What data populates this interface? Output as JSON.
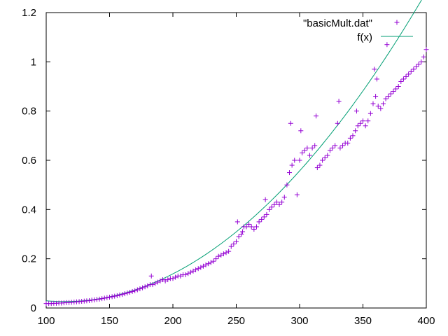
{
  "chart_data": {
    "type": "scatter",
    "xlim": [
      100,
      400
    ],
    "ylim": [
      0,
      1.2
    ],
    "xticks": [
      100,
      150,
      200,
      250,
      300,
      350,
      400
    ],
    "yticks": [
      0,
      0.2,
      0.4,
      0.6,
      0.8,
      1,
      1.2
    ],
    "xtick_labels": [
      "100",
      "150",
      "200",
      "250",
      "300",
      "350",
      "400"
    ],
    "ytick_labels": [
      "0",
      "0.2",
      "0.4",
      "0.6",
      "0.8",
      "1",
      "1.2"
    ],
    "grid": false,
    "legend_position": "top-right",
    "series": [
      {
        "name": "\"basicMult.dat\"",
        "kind": "points",
        "marker": "plus",
        "color": "#9400d3",
        "x": [
          100,
          102,
          104,
          106,
          108,
          110,
          112,
          114,
          116,
          118,
          120,
          122,
          124,
          126,
          128,
          130,
          132,
          134,
          136,
          138,
          140,
          142,
          144,
          146,
          148,
          150,
          152,
          154,
          156,
          158,
          160,
          162,
          164,
          166,
          168,
          170,
          172,
          174,
          176,
          178,
          180,
          182,
          183,
          184,
          186,
          188,
          190,
          192,
          194,
          196,
          198,
          200,
          202,
          204,
          206,
          208,
          210,
          212,
          214,
          216,
          218,
          220,
          222,
          224,
          226,
          228,
          230,
          232,
          234,
          236,
          238,
          240,
          242,
          244,
          246,
          248,
          250,
          251,
          252,
          254,
          255,
          256,
          258,
          260,
          262,
          264,
          266,
          268,
          270,
          272,
          273,
          274,
          276,
          278,
          280,
          282,
          284,
          286,
          288,
          290,
          292,
          293,
          294,
          296,
          298,
          300,
          301,
          302,
          304,
          306,
          308,
          310,
          312,
          313,
          314,
          316,
          318,
          320,
          322,
          324,
          326,
          328,
          330,
          331,
          332,
          334,
          336,
          338,
          340,
          342,
          344,
          345,
          346,
          348,
          350,
          352,
          354,
          356,
          358,
          359,
          360,
          361,
          362,
          364,
          366,
          368,
          369,
          370,
          372,
          374,
          376,
          378,
          380,
          382,
          384,
          386,
          388,
          390,
          392,
          394,
          396,
          398,
          400
        ],
        "y": [
          0.018,
          0.018,
          0.018,
          0.019,
          0.019,
          0.02,
          0.02,
          0.021,
          0.022,
          0.022,
          0.023,
          0.024,
          0.025,
          0.026,
          0.027,
          0.028,
          0.029,
          0.03,
          0.032,
          0.033,
          0.035,
          0.036,
          0.038,
          0.04,
          0.042,
          0.044,
          0.046,
          0.048,
          0.05,
          0.053,
          0.055,
          0.058,
          0.061,
          0.064,
          0.067,
          0.07,
          0.074,
          0.078,
          0.082,
          0.086,
          0.09,
          0.095,
          0.13,
          0.095,
          0.1,
          0.105,
          0.11,
          0.115,
          0.11,
          0.115,
          0.12,
          0.12,
          0.125,
          0.13,
          0.13,
          0.135,
          0.135,
          0.14,
          0.145,
          0.15,
          0.155,
          0.16,
          0.165,
          0.17,
          0.175,
          0.18,
          0.185,
          0.19,
          0.2,
          0.21,
          0.215,
          0.22,
          0.225,
          0.23,
          0.25,
          0.26,
          0.27,
          0.35,
          0.29,
          0.3,
          0.31,
          0.33,
          0.33,
          0.34,
          0.33,
          0.32,
          0.33,
          0.35,
          0.36,
          0.37,
          0.44,
          0.38,
          0.4,
          0.41,
          0.42,
          0.43,
          0.42,
          0.43,
          0.45,
          0.5,
          0.55,
          0.75,
          0.58,
          0.6,
          0.46,
          0.6,
          0.72,
          0.63,
          0.64,
          0.65,
          0.62,
          0.65,
          0.66,
          0.78,
          0.57,
          0.58,
          0.6,
          0.61,
          0.62,
          0.64,
          0.65,
          0.66,
          0.75,
          0.84,
          0.65,
          0.66,
          0.67,
          0.67,
          0.69,
          0.7,
          0.72,
          0.8,
          0.74,
          0.75,
          0.76,
          0.74,
          0.76,
          0.79,
          0.83,
          0.97,
          0.86,
          0.93,
          0.82,
          0.81,
          0.83,
          0.85,
          1.07,
          0.86,
          0.87,
          0.88,
          0.89,
          0.9,
          0.92,
          0.93,
          0.94,
          0.95,
          0.96,
          0.97,
          0.98,
          0.99,
          1.0,
          1.02,
          1.05
        ]
      },
      {
        "name": "f(x)",
        "kind": "line",
        "color": "#009e73",
        "fit": "quadratic",
        "coefficients": [
          1.5444e-05,
          -0.00354,
          0.229
        ],
        "x_range": [
          100,
          400
        ]
      }
    ]
  }
}
